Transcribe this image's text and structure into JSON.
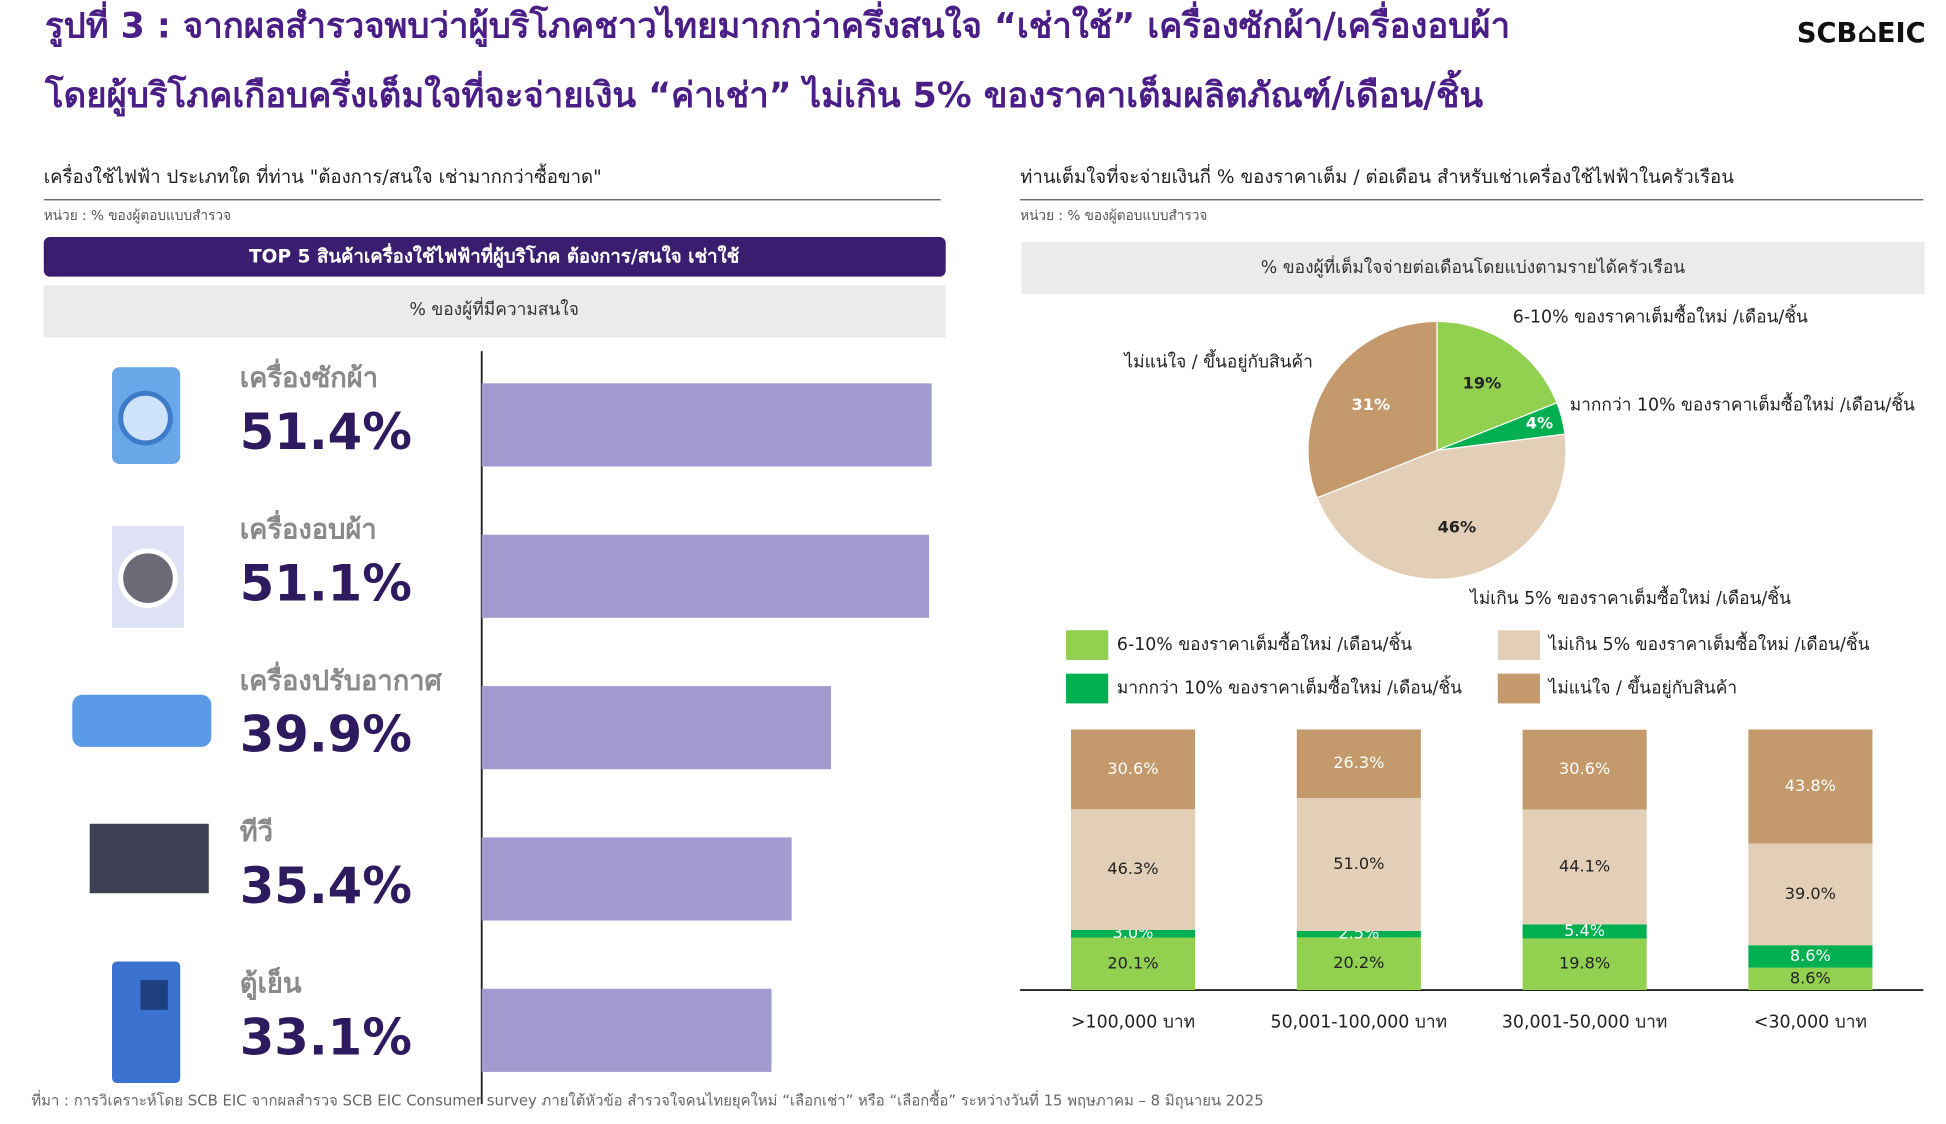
{
  "header": {
    "title_line1": "รูปที่ 3 : จากผลสำรวจพบว่าผู้บริโภคชาวไทยมากกว่าครึ่งสนใจ “เช่าใช้” เครื่องซักผ้า/เครื่องอบผ้า",
    "title_line2": "โดยผู้บริโภคเกือบครึ่งเต็มใจที่จะจ่ายเงิน “ค่าเช่า” ไม่เกิน 5% ของราคาเต็มผลิตภัณฑ์/เดือน/ชิ้น",
    "logo": "SCB⌂EIC"
  },
  "source": "ที่มา : การวิเคราะห์โดย SCB EIC จากผลสำรวจ SCB EIC Consumer survey ภายใต้หัวข้อ สำรวจใจคนไทยยุคใหม่ “เลือกเช่า” หรือ “เลือกซื้อ” ระหว่างวันที่ 15 พฤษภาคม – 8 มิถุนายน 2025",
  "chart_data": [
    {
      "type": "bar",
      "orientation": "horizontal",
      "title": "เครื่องใช้ไฟฟ้า ประเภทใด ที่ท่าน \"ต้องการ/สนใจ เช่ามากกว่าซื้อขาด\"",
      "unit": "หน่วย : % ของผู้ตอบแบบสำรวจ",
      "banner": "TOP 5 สินค้าเครื่องใช้ไฟฟ้าที่ผู้บริโภค ต้องการ/สนใจ เช่าใช้",
      "subtitle": "% ของผู้ที่มีความสนใจ",
      "categories": [
        "เครื่องซักผ้า",
        "เครื่องอบผ้า",
        "เครื่องปรับอากาศ",
        "ทีวี",
        "ตู้เย็น"
      ],
      "values": [
        51.4,
        51.1,
        39.9,
        35.4,
        33.1
      ],
      "value_labels": [
        "51.4%",
        "51.1%",
        "39.9%",
        "35.4%",
        "33.1%"
      ],
      "color": "#a29bd0",
      "xlim": [
        0,
        53
      ]
    },
    {
      "type": "pie",
      "title": "ท่านเต็มใจที่จะจ่ายเงินกี่ % ของราคาเต็ม / ต่อเดือน สำหรับเช่าเครื่องใช้ไฟฟ้าในครัวเรือน",
      "unit": "หน่วย : % ของผู้ตอบแบบสำรวจ",
      "subtitle": "% ของผู้ที่เต็มใจจ่ายต่อเดือนโดยแบ่งตามรายได้ครัวเรือน",
      "categories": [
        "6-10% ของราคาเต็มซื้อใหม่ /เดือน/ชิ้น",
        "มากกว่า 10% ของราคาเต็มซื้อใหม่ /เดือน/ชิ้น",
        "ไม่เกิน 5% ของราคาเต็มซื้อใหม่ /เดือน/ชิ้น",
        "ไม่แน่ใจ / ขึ้นอยู่กับสินค้า"
      ],
      "values": [
        19,
        4,
        46,
        31
      ],
      "value_labels": [
        "19%",
        "4%",
        "46%",
        "31%"
      ],
      "colors": [
        "#92d050",
        "#00b050",
        "#e3cfb8",
        "#c49a6c"
      ]
    },
    {
      "type": "stacked_bar",
      "categories": [
        ">100,000 บาท",
        "50,001-100,000 บาท",
        "30,001-50,000 บาท",
        "<30,000 บาท"
      ],
      "ylim": [
        0,
        100
      ],
      "series": [
        {
          "name": "6-10% ของราคาเต็มซื้อใหม่ /เดือน/ชิ้น",
          "color": "#92d050",
          "values": [
            20.1,
            20.2,
            19.8,
            8.6
          ],
          "value_labels": [
            "20.1%",
            "20.2%",
            "19.8%",
            "8.6%"
          ]
        },
        {
          "name": "มากกว่า 10% ของราคาเต็มซื้อใหม่ /เดือน/ชิ้น",
          "color": "#00b050",
          "values": [
            3.0,
            2.5,
            5.4,
            8.6
          ],
          "value_labels": [
            "3.0%",
            "2.5%",
            "5.4%",
            "8.6%"
          ]
        },
        {
          "name": "ไม่เกิน 5% ของราคาเต็มซื้อใหม่ /เดือน/ชิ้น",
          "color": "#e3cfb8",
          "values": [
            46.3,
            51.0,
            44.1,
            39.0
          ],
          "value_labels": [
            "46.3%",
            "51.0%",
            "44.1%",
            "39.0%"
          ]
        },
        {
          "name": "ไม่แน่ใจ / ขึ้นอยู่กับสินค้า",
          "color": "#c49a6c",
          "values": [
            30.6,
            26.3,
            30.6,
            43.8
          ],
          "value_labels": [
            "30.6%",
            "26.3%",
            "30.6%",
            "43.8%"
          ]
        }
      ]
    }
  ]
}
